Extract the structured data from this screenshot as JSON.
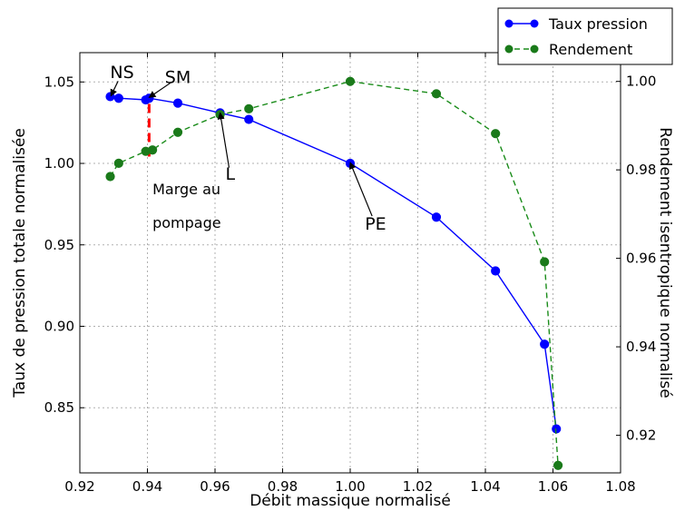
{
  "chart_data": {
    "type": "line",
    "title": "",
    "xlabel": "Débit massique normalisé",
    "ylabel": "Taux de pression totale normalisée",
    "y2label": "Rendement isentropique normalisé",
    "xlim": [
      0.92,
      1.08
    ],
    "ylim": [
      0.81,
      1.068
    ],
    "y2lim": [
      0.9115,
      1.0065
    ],
    "xticks": [
      "0.92",
      "0.94",
      "0.96",
      "0.98",
      "1.00",
      "1.02",
      "1.04",
      "1.06",
      "1.08"
    ],
    "yticks": [
      "0.85",
      "0.90",
      "0.95",
      "1.00",
      "1.05"
    ],
    "y2ticks": [
      "0.92",
      "0.94",
      "0.96",
      "0.98",
      "1.00"
    ],
    "grid": true,
    "legend_position": "top-right",
    "series": [
      {
        "name": "Taux pression",
        "axis": "left",
        "color": "#0000ff",
        "line_style": "solid",
        "marker_color": "#0000ff",
        "x": [
          0.929,
          0.9315,
          0.9395,
          0.9405,
          0.949,
          0.9615,
          0.97,
          1.0,
          1.0255,
          1.043,
          1.0575,
          1.061
        ],
        "y": [
          1.041,
          1.04,
          1.039,
          1.04,
          1.037,
          1.031,
          1.027,
          1.0,
          0.967,
          0.934,
          0.889,
          0.837
        ]
      },
      {
        "name": "Rendement",
        "axis": "right",
        "color": "#1a8c1a",
        "line_style": "dashed",
        "marker_color": "#1a7a1a",
        "x": [
          0.929,
          0.9315,
          0.9395,
          0.9415,
          0.949,
          0.9615,
          0.97,
          1.0,
          1.0255,
          1.043,
          1.0575,
          1.0615
        ],
        "y": [
          0.9785,
          0.9815,
          0.9842,
          0.9845,
          0.9885,
          0.9925,
          0.9938,
          1.0,
          0.9972,
          0.9882,
          0.9592,
          0.9132
        ]
      }
    ],
    "marge_line": {
      "x": 0.9405,
      "y_from": 0.983,
      "y_to": 1.039,
      "color": "#ff0000"
    },
    "annotations": [
      {
        "text": "NS",
        "text_x": 0.9325,
        "text_y": 1.0555,
        "target_x": 0.9292,
        "target_y": 1.0415,
        "size": 19
      },
      {
        "text": "SM",
        "text_x": 0.949,
        "text_y": 1.0525,
        "target_x": 0.9405,
        "target_y": 1.0405,
        "size": 19
      },
      {
        "text": "L",
        "text_x": 0.9645,
        "text_y": 0.993,
        "target_x": 0.9615,
        "target_y": 1.031,
        "size": 19
      },
      {
        "text": "PE",
        "text_x": 1.0075,
        "text_y": 0.9625,
        "target_x": 1.0,
        "target_y": 1.0005,
        "size": 19
      },
      {
        "text": "Marge au",
        "text_x": 0.9415,
        "text_y": 0.9835,
        "size": 16
      },
      {
        "text": "pompage",
        "text_x": 0.9415,
        "text_y": 0.963,
        "size": 16
      }
    ]
  }
}
